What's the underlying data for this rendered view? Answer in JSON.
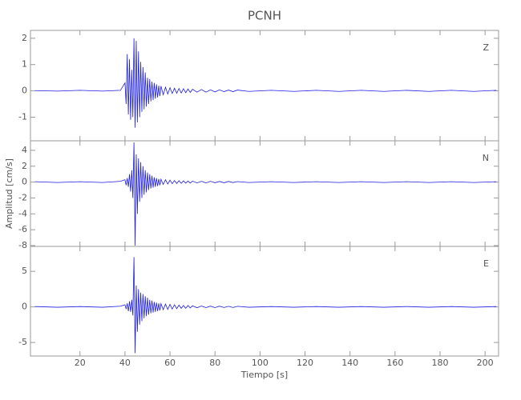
{
  "chart_data": [
    {
      "type": "line",
      "title": "PCNH",
      "label": "Z",
      "color": "#1c1ce0",
      "xlim": [
        -2,
        206
      ],
      "ylim": [
        -1.9,
        2.3
      ],
      "yticks": [
        -1,
        0,
        1,
        2
      ],
      "x": [
        0,
        10,
        20,
        30,
        38,
        40,
        40.5,
        41,
        41.5,
        42,
        42.5,
        43,
        43.5,
        44,
        44.5,
        45,
        45.5,
        46,
        46.5,
        47,
        47.5,
        48,
        48.5,
        49,
        49.5,
        50,
        50.5,
        51,
        51.5,
        52,
        52.5,
        53,
        53.5,
        54,
        54.5,
        55,
        55.5,
        56,
        57,
        58,
        59,
        60,
        61,
        62,
        63,
        64,
        65,
        66,
        67,
        68,
        69,
        70,
        72,
        74,
        76,
        78,
        80,
        82,
        84,
        86,
        88,
        90,
        95,
        105,
        115,
        125,
        135,
        145,
        155,
        165,
        175,
        185,
        195,
        205
      ],
      "values": [
        0.01,
        -0.01,
        0.02,
        -0.01,
        0.02,
        0.3,
        -0.5,
        1.4,
        -0.9,
        1.2,
        -1.1,
        0.8,
        -1.0,
        2.0,
        -1.4,
        1.9,
        -1.2,
        1.5,
        -1.0,
        1.1,
        -0.8,
        0.9,
        -0.7,
        0.7,
        -0.6,
        0.5,
        -0.5,
        0.45,
        -0.4,
        0.35,
        -0.35,
        0.3,
        -0.3,
        0.25,
        -0.25,
        0.2,
        -0.2,
        0.18,
        -0.15,
        0.14,
        -0.12,
        0.12,
        -0.1,
        0.1,
        -0.09,
        0.09,
        -0.08,
        0.08,
        -0.07,
        0.07,
        -0.06,
        0.06,
        -0.05,
        0.05,
        -0.05,
        0.04,
        -0.04,
        0.04,
        -0.03,
        0.03,
        -0.03,
        0.03,
        -0.02,
        0.02,
        -0.02,
        0.02,
        -0.02,
        0.02,
        -0.02,
        0.02,
        -0.02,
        0.02,
        -0.02,
        0.02
      ]
    },
    {
      "type": "line",
      "ylabel": "Amplitud [cm/s]",
      "label": "N",
      "color": "#1c1ce0",
      "xlim": [
        -2,
        206
      ],
      "ylim": [
        -8.1,
        5.2
      ],
      "yticks": [
        -8,
        -6,
        -4,
        -2,
        0,
        2,
        4
      ],
      "x": [
        0,
        10,
        20,
        30,
        38,
        40,
        40.5,
        41,
        41.5,
        42,
        42.5,
        43,
        43.5,
        44,
        44.5,
        45,
        45.5,
        46,
        46.5,
        47,
        47.5,
        48,
        48.5,
        49,
        49.5,
        50,
        50.5,
        51,
        51.5,
        52,
        52.5,
        53,
        53.5,
        54,
        54.5,
        55,
        55.5,
        56,
        57,
        58,
        59,
        60,
        61,
        62,
        63,
        64,
        65,
        66,
        67,
        68,
        69,
        70,
        72,
        74,
        76,
        78,
        80,
        82,
        84,
        86,
        88,
        90,
        95,
        105,
        115,
        125,
        135,
        145,
        155,
        165,
        175,
        185,
        195,
        205
      ],
      "values": [
        0.05,
        -0.05,
        0.05,
        -0.05,
        0.1,
        0.3,
        -0.4,
        0.5,
        -0.6,
        1.0,
        -1.2,
        1.5,
        -2.0,
        5.0,
        -8.0,
        3.5,
        -4.0,
        3.0,
        -2.5,
        2.5,
        -2.0,
        2.0,
        -1.6,
        1.5,
        -1.3,
        1.2,
        -1.0,
        1.0,
        -0.8,
        0.8,
        -0.7,
        0.6,
        -0.6,
        0.5,
        -0.5,
        0.4,
        -0.4,
        0.35,
        -0.3,
        0.3,
        -0.25,
        0.25,
        -0.2,
        0.2,
        -0.18,
        0.18,
        -0.15,
        0.15,
        -0.13,
        0.13,
        -0.12,
        0.12,
        -0.1,
        0.1,
        -0.1,
        0.1,
        -0.08,
        0.08,
        -0.08,
        0.08,
        -0.06,
        0.06,
        -0.05,
        0.05,
        -0.05,
        0.05,
        -0.05,
        0.05,
        -0.05,
        0.05,
        -0.05,
        0.05,
        -0.05,
        0.05
      ]
    },
    {
      "type": "line",
      "xlabel": "Tiempo [s]",
      "label": "E",
      "color": "#1c1ce0",
      "xlim": [
        -2,
        206
      ],
      "ylim": [
        -6.9,
        8.5
      ],
      "yticks": [
        -5,
        0,
        5
      ],
      "xticks": [
        20,
        40,
        60,
        80,
        100,
        120,
        140,
        160,
        180,
        200
      ],
      "x": [
        0,
        10,
        20,
        30,
        38,
        40,
        40.5,
        41,
        41.5,
        42,
        42.5,
        43,
        43.5,
        44,
        44.5,
        45,
        45.5,
        46,
        46.5,
        47,
        47.5,
        48,
        48.5,
        49,
        49.5,
        50,
        50.5,
        51,
        51.5,
        52,
        52.5,
        53,
        53.5,
        54,
        54.5,
        55,
        55.5,
        56,
        57,
        58,
        59,
        60,
        61,
        62,
        63,
        64,
        65,
        66,
        67,
        68,
        69,
        70,
        72,
        74,
        76,
        78,
        80,
        82,
        84,
        86,
        88,
        90,
        95,
        105,
        115,
        125,
        135,
        145,
        155,
        165,
        175,
        185,
        195,
        205
      ],
      "values": [
        0.05,
        -0.05,
        0.05,
        -0.05,
        0.1,
        0.3,
        -0.3,
        0.5,
        -0.6,
        0.8,
        -0.7,
        1.0,
        -1.2,
        7.0,
        -6.5,
        3.0,
        -3.5,
        2.5,
        -2.5,
        2.0,
        -2.0,
        1.8,
        -1.6,
        1.5,
        -1.3,
        1.3,
        -1.1,
        1.0,
        -0.9,
        0.9,
        -0.8,
        0.7,
        -0.7,
        0.6,
        -0.6,
        0.5,
        -0.5,
        0.45,
        -0.4,
        0.4,
        -0.35,
        0.35,
        -0.3,
        0.3,
        -0.25,
        0.25,
        -0.2,
        0.2,
        -0.2,
        0.2,
        -0.15,
        0.15,
        -0.12,
        0.12,
        -0.1,
        0.1,
        -0.1,
        0.1,
        -0.08,
        0.08,
        -0.08,
        0.08,
        -0.05,
        0.05,
        -0.05,
        0.05,
        -0.05,
        0.05,
        -0.05,
        0.05,
        -0.05,
        0.05,
        -0.05,
        0.05
      ]
    }
  ]
}
